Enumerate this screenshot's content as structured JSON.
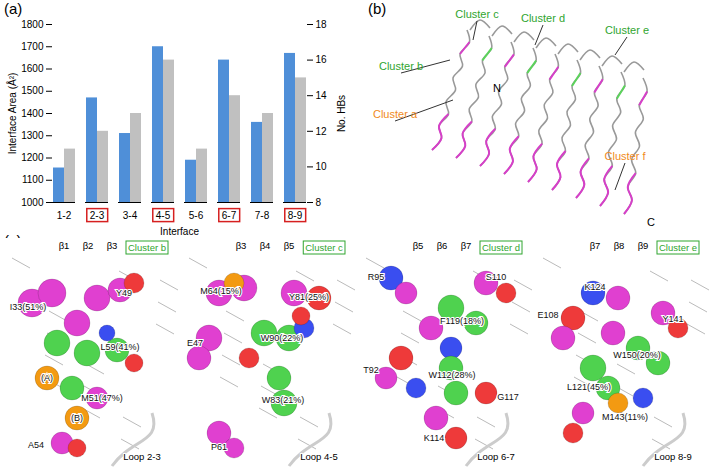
{
  "chart_data": {
    "type": "bar",
    "panel_label": "(a)",
    "x_label": "Interface",
    "categories": [
      "1-2",
      "2-3",
      "3-4",
      "4-5",
      "5-6",
      "6-7",
      "7-8",
      "8-9"
    ],
    "series": [
      {
        "name": "Interface Area (Å²)",
        "color": "#4f8fd8",
        "values": [
          1155,
          1470,
          1310,
          1700,
          1190,
          1640,
          1360,
          1670
        ]
      },
      {
        "name": "No. HBs",
        "color": "#c0c0c0",
        "axis": "y2",
        "values": [
          11,
          12,
          13,
          16,
          11,
          14,
          13,
          15
        ]
      }
    ],
    "ylim": [
      1000,
      1800
    ],
    "yticks": [
      1000,
      1100,
      1200,
      1300,
      1400,
      1500,
      1600,
      1700,
      1800
    ],
    "y2lim": [
      8,
      18
    ],
    "y2ticks": [
      8,
      10,
      12,
      14,
      16,
      18
    ],
    "boxed_categories": [
      "2-3",
      "4-5",
      "6-7",
      "8-9"
    ]
  },
  "panel_b": {
    "panel_label": "(b)",
    "cluster_labels": [
      {
        "text": "Cluster c",
        "color": "#2fa52f"
      },
      {
        "text": "Cluster d",
        "color": "#2fa52f"
      },
      {
        "text": "Cluster e",
        "color": "#2fa52f"
      },
      {
        "text": "Cluster b",
        "color": "#2fa52f"
      },
      {
        "text": "Cluster a",
        "color": "#f08a1c"
      },
      {
        "text": "Cluster f",
        "color": "#f08a1c"
      }
    ],
    "termini": [
      "N",
      "C"
    ]
  },
  "panel_c": {
    "panel_label": "(c)",
    "views": [
      {
        "cluster": "Cluster b",
        "strands": [
          "β1",
          "β2",
          "β3"
        ],
        "residues": [
          "I33(51%)",
          "Y49",
          "L59(41%)",
          "(A)",
          "(B)",
          "M51(47%)",
          "A54"
        ],
        "loop": "Loop 2-3"
      },
      {
        "cluster": "Cluster c",
        "strands": [
          "β3",
          "β4",
          "β5"
        ],
        "residues": [
          "M64(15%)",
          "E47",
          "Y81(25%)",
          "W90(22%)",
          "W83(21%)",
          "P61"
        ],
        "loop": "Loop 4-5"
      },
      {
        "cluster": "Cluster d",
        "strands": [
          "β5",
          "β6",
          "β7"
        ],
        "residues": [
          "R95",
          "S110",
          "F119(18%)",
          "T92",
          "W112(28%)",
          "G117",
          "K114"
        ],
        "loop": "Loop 6-7"
      },
      {
        "cluster": "Cluster e",
        "strands": [
          "β7",
          "β8",
          "β9"
        ],
        "residues": [
          "K124",
          "E108",
          "Y141",
          "W150(20%)",
          "L121(45%)",
          "M143(11%)"
        ],
        "loop": "Loop 8-9"
      }
    ]
  }
}
